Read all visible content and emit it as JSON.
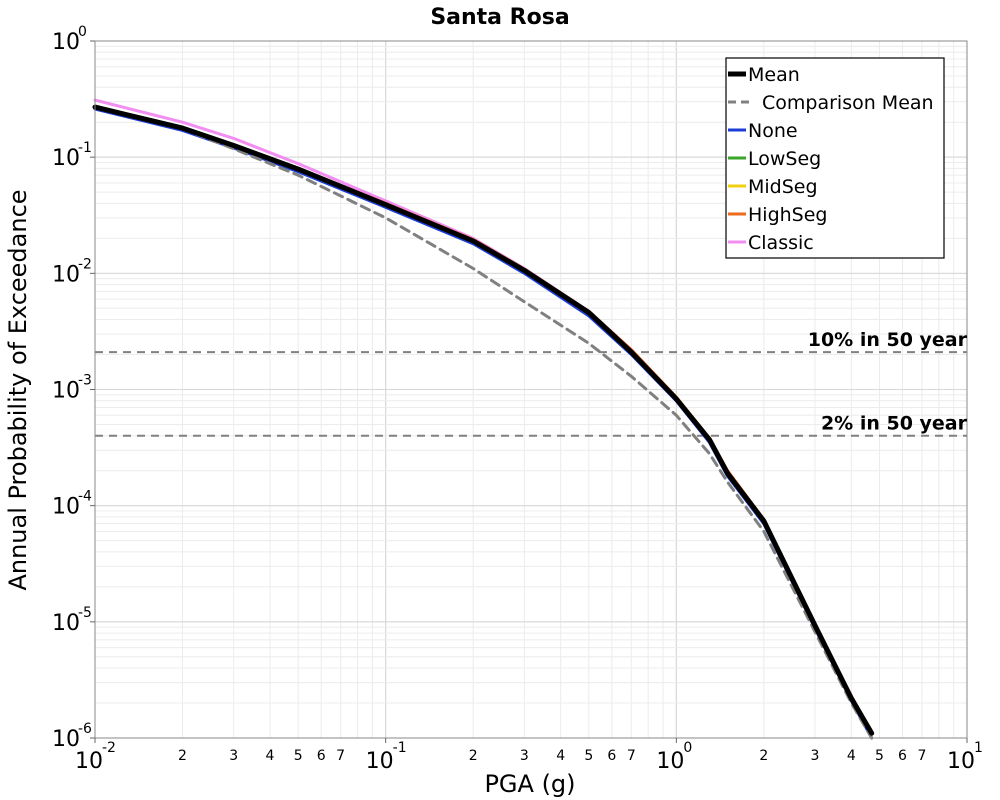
{
  "chart_data": {
    "type": "line",
    "title": "Santa Rosa",
    "xlabel": "PGA (g)",
    "ylabel": "Annual Probability of Exceedance",
    "x_scale": "log",
    "y_scale": "log",
    "xlim": [
      0.01,
      10
    ],
    "ylim": [
      1e-06,
      1
    ],
    "grid": true,
    "legend_position": "top-right",
    "x_ticks": [
      {
        "value": 0.01,
        "base": "10",
        "exp": "-2"
      },
      {
        "value": 0.1,
        "base": "10",
        "exp": "-1"
      },
      {
        "value": 1,
        "base": "10",
        "exp": "0"
      },
      {
        "value": 10,
        "base": "10",
        "exp": "1"
      }
    ],
    "y_ticks": [
      {
        "value": 1,
        "base": "10",
        "exp": "0"
      },
      {
        "value": 0.1,
        "base": "10",
        "exp": "-1"
      },
      {
        "value": 0.01,
        "base": "10",
        "exp": "-2"
      },
      {
        "value": 0.001,
        "base": "10",
        "exp": "-3"
      },
      {
        "value": 0.0001,
        "base": "10",
        "exp": "-4"
      },
      {
        "value": 1e-05,
        "base": "10",
        "exp": "-5"
      },
      {
        "value": 1e-06,
        "base": "10",
        "exp": "-6"
      }
    ],
    "x_minor_tick_labels": [
      "2",
      "3",
      "4",
      "5",
      "6",
      "7"
    ],
    "series": [
      {
        "name": "Classic",
        "color": "#f28ef2",
        "width": 3,
        "dash": "none",
        "x": [
          0.01,
          0.02,
          0.03,
          0.05,
          0.1,
          0.2,
          0.3,
          0.5,
          0.7,
          1.0,
          1.3,
          1.5,
          2.0,
          3.0,
          4.0,
          4.7
        ],
        "y": [
          0.31,
          0.2,
          0.145,
          0.088,
          0.042,
          0.02,
          0.011,
          0.0047,
          0.0022,
          0.00085,
          0.00037,
          0.0002,
          7.5e-05,
          9.5e-06,
          2.3e-06,
          1.1e-06
        ]
      },
      {
        "name": "HighSeg",
        "color": "#ee6a1e",
        "width": 3,
        "dash": "none",
        "x": [
          0.01,
          0.02,
          0.03,
          0.05,
          0.1,
          0.2,
          0.3,
          0.5,
          0.7,
          1.0,
          1.3,
          1.5,
          2.0,
          3.0,
          4.0,
          4.7
        ],
        "y": [
          0.275,
          0.18,
          0.128,
          0.08,
          0.04,
          0.0195,
          0.0109,
          0.0047,
          0.0022,
          0.00086,
          0.00038,
          0.0002,
          7.6e-05,
          9.5e-06,
          2.3e-06,
          1.1e-06
        ]
      },
      {
        "name": "MidSeg",
        "color": "#f0d010",
        "width": 3,
        "dash": "none",
        "x": [
          0.01,
          0.02,
          0.03,
          0.05,
          0.1,
          0.2,
          0.3,
          0.5,
          0.7,
          1.0,
          1.3,
          1.5,
          2.0,
          3.0,
          4.0,
          4.7
        ],
        "y": [
          0.27,
          0.178,
          0.126,
          0.079,
          0.039,
          0.019,
          0.0106,
          0.0046,
          0.0021,
          0.00083,
          0.00037,
          0.00019,
          7.4e-05,
          9.3e-06,
          2.2e-06,
          1.1e-06
        ]
      },
      {
        "name": "LowSeg",
        "color": "#3aa62a",
        "width": 3,
        "dash": "none",
        "x": [
          0.01,
          0.02,
          0.03,
          0.05,
          0.1,
          0.2,
          0.3,
          0.5,
          0.7,
          1.0,
          1.3,
          1.5,
          2.0,
          3.0,
          4.0,
          4.7
        ],
        "y": [
          0.268,
          0.176,
          0.125,
          0.078,
          0.0385,
          0.0188,
          0.0105,
          0.0045,
          0.0021,
          0.00082,
          0.00036,
          0.00019,
          7.3e-05,
          9.2e-06,
          2.2e-06,
          1.1e-06
        ]
      },
      {
        "name": "None",
        "color": "#1b3ed8",
        "width": 3,
        "dash": "none",
        "x": [
          0.01,
          0.02,
          0.03,
          0.05,
          0.1,
          0.2,
          0.3,
          0.5,
          0.7,
          1.0,
          1.3,
          1.5,
          2.0,
          3.0,
          4.0,
          4.7
        ],
        "y": [
          0.26,
          0.17,
          0.12,
          0.075,
          0.037,
          0.018,
          0.01,
          0.0043,
          0.002,
          0.0008,
          0.00035,
          0.00018,
          7e-05,
          8.8e-06,
          2.1e-06,
          1e-06
        ]
      },
      {
        "name": "Comparison Mean",
        "color": "#808080",
        "width": 3,
        "dash": "9,6",
        "x": [
          0.01,
          0.02,
          0.03,
          0.05,
          0.1,
          0.2,
          0.3,
          0.5,
          0.7,
          1.0,
          1.3,
          1.5,
          2.0,
          3.0,
          4.0,
          4.7
        ],
        "y": [
          0.27,
          0.175,
          0.118,
          0.07,
          0.03,
          0.011,
          0.0057,
          0.0025,
          0.0013,
          0.0006,
          0.00028,
          0.00016,
          6e-05,
          8.2e-06,
          2e-06,
          1e-06
        ]
      },
      {
        "name": "Mean",
        "color": "#000000",
        "width": 5,
        "dash": "none",
        "x": [
          0.01,
          0.02,
          0.03,
          0.05,
          0.1,
          0.2,
          0.3,
          0.5,
          0.7,
          1.0,
          1.3,
          1.5,
          2.0,
          3.0,
          4.0,
          4.7
        ],
        "y": [
          0.27,
          0.178,
          0.126,
          0.079,
          0.039,
          0.019,
          0.0106,
          0.0046,
          0.0021,
          0.00083,
          0.00037,
          0.00019,
          7.4e-05,
          9.3e-06,
          2.2e-06,
          1.1e-06
        ]
      }
    ],
    "legend_order": [
      "Mean",
      "Comparison Mean",
      "None",
      "LowSeg",
      "MidSeg",
      "HighSeg",
      "Classic"
    ],
    "reference_lines": [
      {
        "label": "10% in 50 year",
        "y": 0.0021,
        "color": "#808080"
      },
      {
        "label": "2% in 50 year",
        "y": 0.0004,
        "color": "#808080"
      }
    ]
  }
}
